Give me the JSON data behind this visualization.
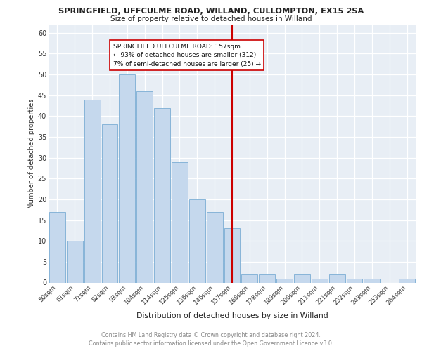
{
  "title": "SPRINGFIELD, UFFCULME ROAD, WILLAND, CULLOMPTON, EX15 2SA",
  "subtitle": "Size of property relative to detached houses in Willand",
  "xlabel": "Distribution of detached houses by size in Willand",
  "ylabel": "Number of detached properties",
  "footer": "Contains HM Land Registry data © Crown copyright and database right 2024.\nContains public sector information licensed under the Open Government Licence v3.0.",
  "categories": [
    "50sqm",
    "61sqm",
    "71sqm",
    "82sqm",
    "93sqm",
    "104sqm",
    "114sqm",
    "125sqm",
    "136sqm",
    "146sqm",
    "157sqm",
    "168sqm",
    "178sqm",
    "189sqm",
    "200sqm",
    "211sqm",
    "221sqm",
    "232sqm",
    "243sqm",
    "253sqm",
    "264sqm"
  ],
  "values": [
    17,
    10,
    44,
    38,
    50,
    46,
    42,
    29,
    20,
    17,
    13,
    2,
    2,
    1,
    2,
    1,
    2,
    1,
    1,
    0,
    1
  ],
  "bar_color": "#c5d8ed",
  "bar_edge_color": "#7aadd4",
  "marker_index": 10,
  "annotation_title": "SPRINGFIELD UFFCULME ROAD: 157sqm",
  "annotation_line1": "← 93% of detached houses are smaller (312)",
  "annotation_line2": "7% of semi-detached houses are larger (25) →",
  "marker_color": "#cc0000",
  "background_color": "#e8eef5",
  "ylim": [
    0,
    62
  ],
  "yticks": [
    0,
    5,
    10,
    15,
    20,
    25,
    30,
    35,
    40,
    45,
    50,
    55,
    60
  ]
}
